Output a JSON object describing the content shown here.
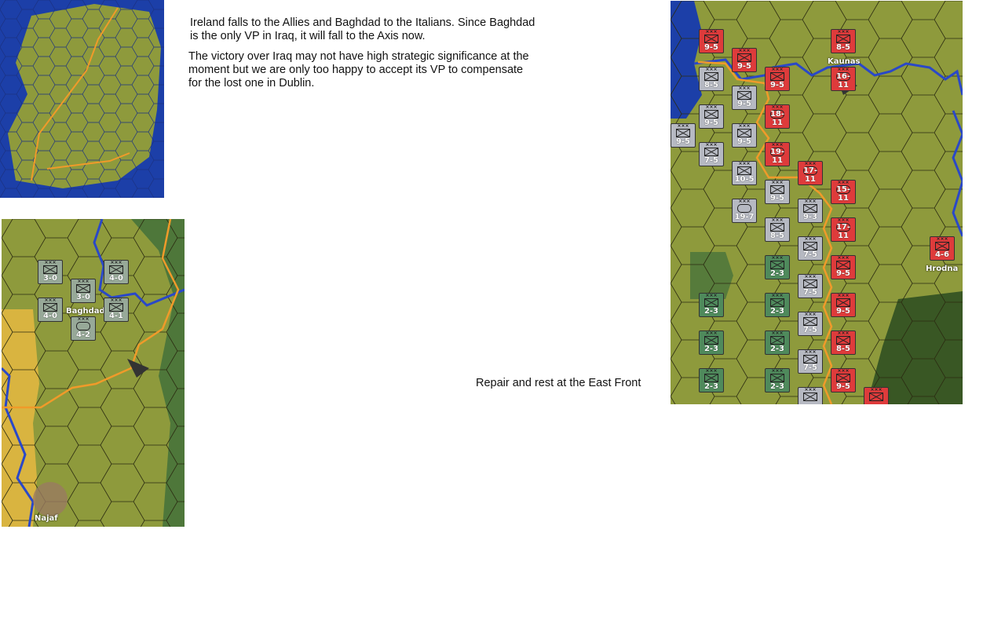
{
  "text": {
    "para1_line1": "Ireland falls to the Allies and Baghdad to the Italians. Since Baghdad",
    "para1_line2": "is the only VP in Iraq, it will fall to the Axis now.",
    "para2_line1": "The victory over Iraq may not have high strategic significance at the",
    "para2_line2": "moment but we are only too happy to accept its VP to compensate",
    "para2_line3": "for  the lost one in Dublin.",
    "caption_east": "Repair and rest at the East Front"
  },
  "colors": {
    "ground": "#8e9a3c",
    "sea": "#1c3fa8",
    "river": "#2a48c8",
    "front_line": "#f09a2a",
    "axis": "#de3b3b",
    "soviet": "#b6b9c2",
    "soviet_reserve": "#4f8a5c",
    "iraq": "#97a998"
  },
  "iraq_map": {
    "cities": [
      "Baghdad",
      "Najaf"
    ],
    "units": [
      {
        "label": "3-0",
        "type": "infantry"
      },
      {
        "label": "3-0",
        "type": "infantry"
      },
      {
        "label": "4-0",
        "type": "infantry"
      },
      {
        "label": "4-0",
        "type": "infantry"
      },
      {
        "label": "4-1",
        "type": "infantry"
      },
      {
        "label": "4-2",
        "type": "armor"
      }
    ]
  },
  "east_map": {
    "cities": [
      "Kaunas",
      "Hrodna"
    ],
    "units": [
      {
        "label": "9-5",
        "side": "red",
        "type": "infantry"
      },
      {
        "label": "9-5",
        "side": "red",
        "type": "infantry"
      },
      {
        "label": "9-5",
        "side": "red",
        "type": "infantry"
      },
      {
        "label": "8-5",
        "side": "red",
        "type": "infantry"
      },
      {
        "label": "16-11",
        "side": "red",
        "type": "armor"
      },
      {
        "label": "18-11",
        "side": "red",
        "type": "armor"
      },
      {
        "label": "19-11",
        "side": "red",
        "type": "armor"
      },
      {
        "label": "17-11",
        "side": "red",
        "type": "armor"
      },
      {
        "label": "15-11",
        "side": "red",
        "type": "armor"
      },
      {
        "label": "17-11",
        "side": "red",
        "type": "armor"
      },
      {
        "label": "9-5",
        "side": "red",
        "type": "infantry"
      },
      {
        "label": "9-5",
        "side": "red",
        "type": "infantry"
      },
      {
        "label": "8-5",
        "side": "red",
        "type": "infantry"
      },
      {
        "label": "9-5",
        "side": "red",
        "type": "infantry"
      },
      {
        "label": "",
        "side": "red",
        "type": "infantry"
      },
      {
        "label": "4-6",
        "side": "red",
        "type": "infantry"
      },
      {
        "label": "8-5",
        "side": "grey",
        "type": "infantry"
      },
      {
        "label": "9-5",
        "side": "grey",
        "type": "infantry"
      },
      {
        "label": "9-5",
        "side": "grey",
        "type": "infantry"
      },
      {
        "label": "9-5",
        "side": "grey",
        "type": "infantry"
      },
      {
        "label": "9-5",
        "side": "grey",
        "type": "infantry"
      },
      {
        "label": "7-5",
        "side": "grey",
        "type": "infantry"
      },
      {
        "label": "10-5",
        "side": "grey",
        "type": "infantry"
      },
      {
        "label": "9-5",
        "side": "grey",
        "type": "infantry"
      },
      {
        "label": "19-7",
        "side": "grey",
        "type": "armor"
      },
      {
        "label": "8-5",
        "side": "grey",
        "type": "infantry"
      },
      {
        "label": "9-3",
        "side": "grey",
        "type": "infantry"
      },
      {
        "label": "7-5",
        "side": "grey",
        "type": "infantry"
      },
      {
        "label": "7-5",
        "side": "grey",
        "type": "infantry"
      },
      {
        "label": "7-5",
        "side": "grey",
        "type": "infantry"
      },
      {
        "label": "7-5",
        "side": "grey",
        "type": "infantry"
      },
      {
        "label": "",
        "side": "grey",
        "type": "infantry"
      },
      {
        "label": "2-3",
        "side": "green",
        "type": "infantry"
      },
      {
        "label": "2-3",
        "side": "green",
        "type": "infantry"
      },
      {
        "label": "2-3",
        "side": "green",
        "type": "infantry"
      },
      {
        "label": "2-3",
        "side": "green",
        "type": "infantry"
      },
      {
        "label": "2-3",
        "side": "green",
        "type": "infantry"
      },
      {
        "label": "2-3",
        "side": "green",
        "type": "infantry"
      },
      {
        "label": "2-3",
        "side": "green",
        "type": "infantry"
      }
    ]
  }
}
